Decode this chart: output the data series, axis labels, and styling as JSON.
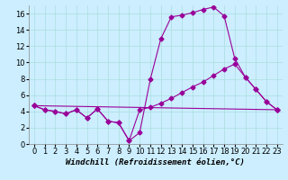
{
  "bg_color": "#cceeff",
  "grid_color": "#aadddd",
  "line_color": "#990099",
  "marker": "D",
  "markersize": 2.5,
  "linewidth": 0.8,
  "xlabel": "Windchill (Refroidissement éolien,°C)",
  "xlabel_fontsize": 6.5,
  "tick_fontsize": 6,
  "xlim": [
    -0.5,
    23.5
  ],
  "ylim": [
    0,
    17
  ],
  "yticks": [
    0,
    2,
    4,
    6,
    8,
    10,
    12,
    14,
    16
  ],
  "xticks": [
    0,
    1,
    2,
    3,
    4,
    5,
    6,
    7,
    8,
    9,
    10,
    11,
    12,
    13,
    14,
    15,
    16,
    17,
    18,
    19,
    20,
    21,
    22,
    23
  ],
  "series1_x": [
    0,
    1,
    2,
    3,
    4,
    5,
    6,
    7,
    8,
    9,
    10,
    11,
    12,
    13,
    14,
    15,
    16,
    17,
    18,
    19,
    20,
    21,
    22,
    23
  ],
  "series1_y": [
    4.7,
    4.2,
    4.0,
    3.7,
    4.2,
    3.2,
    4.3,
    2.8,
    2.6,
    0.4,
    1.4,
    7.9,
    12.9,
    15.6,
    15.8,
    16.1,
    16.5,
    16.8,
    15.7,
    10.5,
    8.2,
    6.7,
    5.2,
    4.2
  ],
  "series2_x": [
    0,
    1,
    2,
    3,
    4,
    5,
    6,
    7,
    8,
    9,
    10,
    11,
    12,
    13,
    14,
    15,
    16,
    17,
    18,
    19,
    20,
    21,
    22,
    23
  ],
  "series2_y": [
    4.7,
    4.2,
    4.0,
    3.7,
    4.2,
    3.2,
    4.3,
    2.8,
    2.6,
    0.4,
    4.2,
    4.5,
    5.0,
    5.6,
    6.3,
    7.0,
    7.6,
    8.4,
    9.2,
    9.8,
    8.2,
    6.7,
    5.2,
    4.2
  ],
  "series3_x": [
    0,
    23
  ],
  "series3_y": [
    4.7,
    4.2
  ]
}
